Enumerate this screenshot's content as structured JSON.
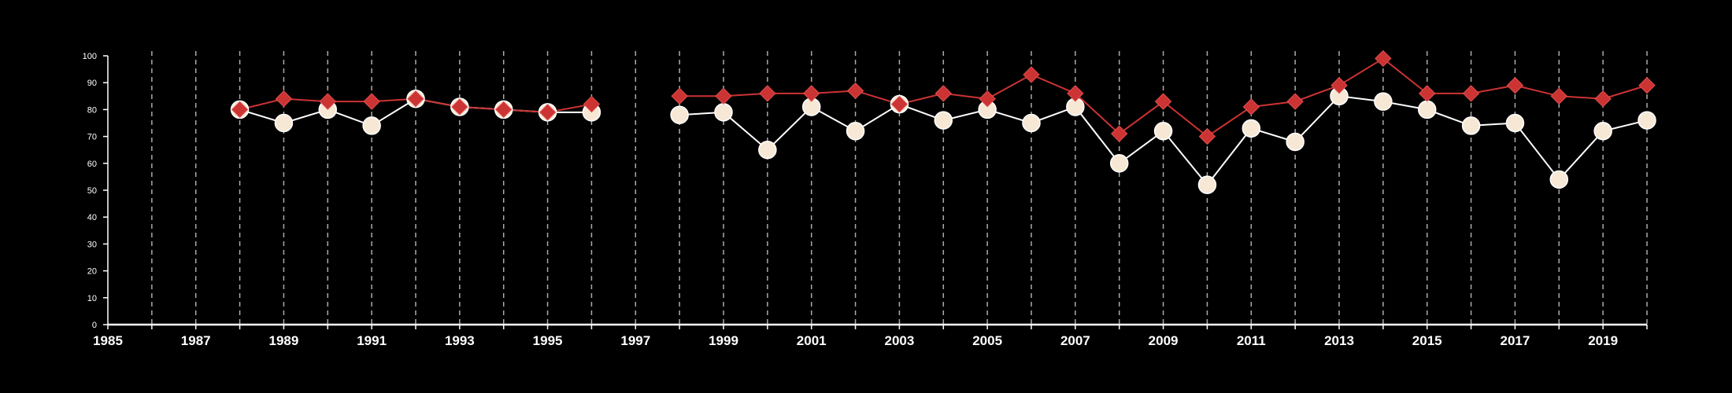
{
  "chart_data": {
    "type": "line",
    "title": "",
    "xlabel": "",
    "ylabel": "",
    "xlim": [
      1985,
      2020
    ],
    "ylim": [
      0,
      100
    ],
    "x_ticks": [
      "1985",
      "1987",
      "1989",
      "1991",
      "1993",
      "1995",
      "1997",
      "1999",
      "2001",
      "2003",
      "2005",
      "2007",
      "2009",
      "2011",
      "2013",
      "2015",
      "2017",
      "2019"
    ],
    "y_ticks": [
      "0",
      "10",
      "20",
      "30",
      "40",
      "50",
      "60",
      "70",
      "80",
      "90",
      "100"
    ],
    "grid": "vertical dashed lines at every year",
    "series": [
      {
        "marker": "circle",
        "color": "#f7e8d6",
        "line_color": "#ffffff",
        "segments": [
          {
            "x": [
              1988,
              1989,
              1990,
              1991,
              1992,
              1993,
              1994,
              1995,
              1996
            ],
            "y": [
              80,
              75,
              80,
              74,
              84,
              81,
              80,
              79,
              79
            ]
          },
          {
            "x": [
              1998,
              1999,
              2000,
              2001,
              2002,
              2003,
              2004,
              2005,
              2006,
              2007,
              2008,
              2009,
              2010,
              2011,
              2012,
              2013,
              2014,
              2015,
              2016,
              2017,
              2018,
              2019,
              2020
            ],
            "y": [
              78,
              79,
              65,
              81,
              72,
              82,
              76,
              80,
              75,
              81,
              60,
              72,
              52,
              73,
              68,
              85,
              83,
              80,
              74,
              75,
              54,
              72,
              76
            ]
          }
        ]
      },
      {
        "marker": "diamond",
        "color": "#cc3333",
        "line_color": "#cc3333",
        "segments": [
          {
            "x": [
              1988,
              1989,
              1990,
              1991,
              1992,
              1993,
              1994,
              1995,
              1996
            ],
            "y": [
              80,
              84,
              83,
              83,
              84,
              81,
              80,
              79,
              82
            ]
          },
          {
            "x": [
              1998,
              1999,
              2000,
              2001,
              2002,
              2003,
              2004,
              2005,
              2006,
              2007,
              2008,
              2009,
              2010,
              2011,
              2012,
              2013,
              2014,
              2015,
              2016,
              2017,
              2018,
              2019,
              2020
            ],
            "y": [
              85,
              85,
              86,
              86,
              87,
              82,
              86,
              84,
              93,
              86,
              71,
              83,
              70,
              81,
              83,
              89,
              99,
              86,
              86,
              89,
              85,
              84,
              89
            ]
          }
        ]
      }
    ]
  }
}
